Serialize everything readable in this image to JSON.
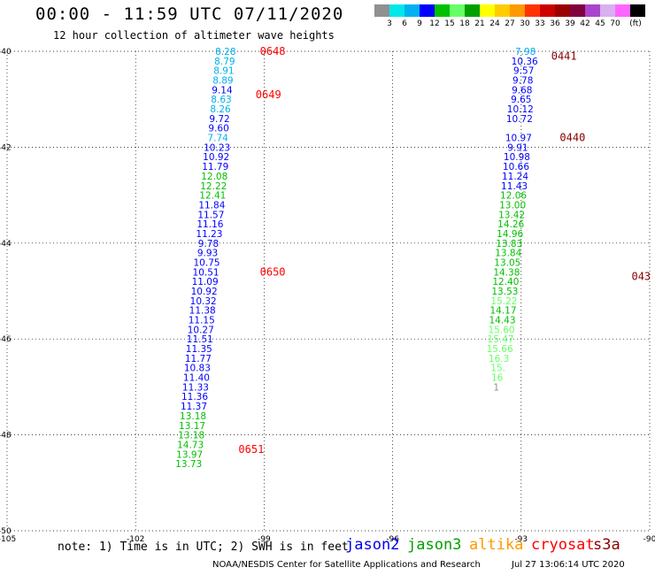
{
  "header": {
    "title": "00:00 - 11:59 UTC 07/11/2020",
    "subtitle": "12 hour collection of altimeter wave heights"
  },
  "colorbar": {
    "colors": [
      "#909090",
      "#00e8e8",
      "#00b0f0",
      "#0000ff",
      "#00c000",
      "#66ff66",
      "#00a000",
      "#ffff00",
      "#ffcc00",
      "#ff9900",
      "#ff3300",
      "#cc0000",
      "#990000",
      "#800040",
      "#aa44cc",
      "#d8b0f0",
      "#ff66ff",
      "#000000"
    ],
    "labels": [
      "3",
      "6",
      "9",
      "12",
      "15",
      "18",
      "21",
      "24",
      "27",
      "30",
      "33",
      "36",
      "39",
      "42",
      "45",
      "70",
      "(ft)"
    ]
  },
  "footer": {
    "note": "note: 1) Time is in UTC; 2) SWH is in feet",
    "credit": "NOAA/NESDIS Center for Satellite Applications and Research",
    "timestamp": "Jul 27 13:06:14 UTC 2020"
  },
  "legend": [
    {
      "name": "jason2",
      "color": "#0000ee"
    },
    {
      "name": "jason3",
      "color": "#00a000"
    },
    {
      "name": "altika",
      "color": "#ff9900"
    },
    {
      "name": "cryosat",
      "color": "#ff0000"
    },
    {
      "name": "s3a",
      "color": "#880000"
    }
  ],
  "chart_data": {
    "type": "scatter",
    "xlim": [
      -105,
      -90
    ],
    "ylim": [
      -50,
      -40
    ],
    "x_ticks": [
      "-105",
      "-102",
      "-99",
      "-96",
      "-93",
      "-90"
    ],
    "y_ticks": [
      "-40",
      "-42",
      "-44",
      "-46",
      "-48",
      "-50"
    ],
    "grid": true,
    "tracks": [
      {
        "satellite": "cryosat",
        "points": [
          {
            "lat": -40.0,
            "lon": -99.9,
            "v": "8.28"
          },
          {
            "lat": -40.2,
            "lon": -99.92,
            "v": "8.79"
          },
          {
            "lat": -40.4,
            "lon": -99.94,
            "v": "8.91"
          },
          {
            "lat": -40.6,
            "lon": -99.96,
            "v": "8.89"
          },
          {
            "lat": -40.8,
            "lon": -99.98,
            "v": "9.14"
          },
          {
            "lat": -41.0,
            "lon": -100.0,
            "v": "8.63"
          },
          {
            "lat": -41.2,
            "lon": -100.02,
            "v": "8.26"
          },
          {
            "lat": -41.4,
            "lon": -100.04,
            "v": "9.72"
          },
          {
            "lat": -41.6,
            "lon": -100.06,
            "v": "9.60"
          },
          {
            "lat": -41.8,
            "lon": -100.08,
            "v": "7.74"
          },
          {
            "lat": -42.0,
            "lon": -100.1,
            "v": "10.23"
          },
          {
            "lat": -42.2,
            "lon": -100.12,
            "v": "10.92"
          },
          {
            "lat": -42.4,
            "lon": -100.14,
            "v": "11.79"
          },
          {
            "lat": -42.6,
            "lon": -100.16,
            "v": "12.08"
          },
          {
            "lat": -42.8,
            "lon": -100.18,
            "v": "12.22"
          },
          {
            "lat": -43.0,
            "lon": -100.2,
            "v": "12.41"
          },
          {
            "lat": -43.2,
            "lon": -100.22,
            "v": "11.84"
          },
          {
            "lat": -43.4,
            "lon": -100.24,
            "v": "11.57"
          },
          {
            "lat": -43.6,
            "lon": -100.26,
            "v": "11.16"
          },
          {
            "lat": -43.8,
            "lon": -100.28,
            "v": "11.23"
          },
          {
            "lat": -44.0,
            "lon": -100.3,
            "v": "9.78"
          },
          {
            "lat": -44.2,
            "lon": -100.32,
            "v": "9.93"
          },
          {
            "lat": -44.4,
            "lon": -100.34,
            "v": "10.75"
          },
          {
            "lat": -44.6,
            "lon": -100.36,
            "v": "10.51"
          },
          {
            "lat": -44.8,
            "lon": -100.38,
            "v": "11.09"
          },
          {
            "lat": -45.0,
            "lon": -100.4,
            "v": "10.92"
          },
          {
            "lat": -45.2,
            "lon": -100.42,
            "v": "10.32"
          },
          {
            "lat": -45.4,
            "lon": -100.44,
            "v": "11.38"
          },
          {
            "lat": -45.6,
            "lon": -100.46,
            "v": "11.15"
          },
          {
            "lat": -45.8,
            "lon": -100.48,
            "v": "10.27"
          },
          {
            "lat": -46.0,
            "lon": -100.5,
            "v": "11.51"
          },
          {
            "lat": -46.2,
            "lon": -100.52,
            "v": "11.35"
          },
          {
            "lat": -46.4,
            "lon": -100.54,
            "v": "11.77"
          },
          {
            "lat": -46.6,
            "lon": -100.56,
            "v": "10.83"
          },
          {
            "lat": -46.8,
            "lon": -100.58,
            "v": "11.40"
          },
          {
            "lat": -47.0,
            "lon": -100.6,
            "v": "11.33"
          },
          {
            "lat": -47.2,
            "lon": -100.62,
            "v": "11.36"
          },
          {
            "lat": -47.4,
            "lon": -100.64,
            "v": "11.37"
          },
          {
            "lat": -47.6,
            "lon": -100.66,
            "v": "13.18"
          },
          {
            "lat": -47.8,
            "lon": -100.68,
            "v": "13.17"
          },
          {
            "lat": -48.0,
            "lon": -100.7,
            "v": "13.18"
          },
          {
            "lat": -48.2,
            "lon": -100.72,
            "v": "14.73"
          },
          {
            "lat": -48.4,
            "lon": -100.74,
            "v": "13.97"
          },
          {
            "lat": -48.6,
            "lon": -100.76,
            "v": "13.73"
          }
        ],
        "time_labels": [
          {
            "lat": -40.0,
            "lon": -98.8,
            "t": "0648"
          },
          {
            "lat": -40.9,
            "lon": -98.9,
            "t": "0649"
          },
          {
            "lat": -44.6,
            "lon": -98.8,
            "t": "0650"
          },
          {
            "lat": -48.3,
            "lon": -99.3,
            "t": "0651"
          }
        ]
      },
      {
        "satellite": "s3a",
        "points": [
          {
            "lat": -40.0,
            "lon": -92.9,
            "v": "7.98"
          },
          {
            "lat": -40.2,
            "lon": -92.92,
            "v": "10.36"
          },
          {
            "lat": -40.4,
            "lon": -92.94,
            "v": "9.57"
          },
          {
            "lat": -40.6,
            "lon": -92.96,
            "v": "9.78"
          },
          {
            "lat": -40.8,
            "lon": -92.98,
            "v": "9.68"
          },
          {
            "lat": -41.0,
            "lon": -93.0,
            "v": "9.65"
          },
          {
            "lat": -41.2,
            "lon": -93.02,
            "v": "10.12"
          },
          {
            "lat": -41.4,
            "lon": -93.04,
            "v": "10.72"
          },
          {
            "lat": -41.8,
            "lon": -93.06,
            "v": "10.97"
          },
          {
            "lat": -42.0,
            "lon": -93.08,
            "v": "9.91"
          },
          {
            "lat": -42.2,
            "lon": -93.1,
            "v": "10.98"
          },
          {
            "lat": -42.4,
            "lon": -93.12,
            "v": "10.66"
          },
          {
            "lat": -42.6,
            "lon": -93.14,
            "v": "11.24"
          },
          {
            "lat": -42.8,
            "lon": -93.16,
            "v": "11.43"
          },
          {
            "lat": -43.0,
            "lon": -93.18,
            "v": "12.06"
          },
          {
            "lat": -43.2,
            "lon": -93.2,
            "v": "13.00"
          },
          {
            "lat": -43.4,
            "lon": -93.22,
            "v": "13.42"
          },
          {
            "lat": -43.6,
            "lon": -93.24,
            "v": "14.26"
          },
          {
            "lat": -43.8,
            "lon": -93.26,
            "v": "14.96"
          },
          {
            "lat": -44.0,
            "lon": -93.28,
            "v": "13.83"
          },
          {
            "lat": -44.2,
            "lon": -93.3,
            "v": "13.84"
          },
          {
            "lat": -44.4,
            "lon": -93.32,
            "v": "13.05"
          },
          {
            "lat": -44.6,
            "lon": -93.34,
            "v": "14.38"
          },
          {
            "lat": -44.8,
            "lon": -93.36,
            "v": "12.40"
          },
          {
            "lat": -45.0,
            "lon": -93.38,
            "v": "13.53"
          },
          {
            "lat": -45.2,
            "lon": -93.4,
            "v": "15.22"
          },
          {
            "lat": -45.4,
            "lon": -93.42,
            "v": "14.17"
          },
          {
            "lat": -45.6,
            "lon": -93.44,
            "v": "14.43"
          },
          {
            "lat": -45.8,
            "lon": -93.46,
            "v": "15.60"
          },
          {
            "lat": -46.0,
            "lon": -93.48,
            "v": "15.47"
          },
          {
            "lat": -46.2,
            "lon": -93.5,
            "v": "15.66"
          },
          {
            "lat": -46.4,
            "lon": -93.52,
            "v": "16.3"
          },
          {
            "lat": -46.6,
            "lon": -93.54,
            "v": "15."
          },
          {
            "lat": -46.8,
            "lon": -93.56,
            "v": "16"
          },
          {
            "lat": -47.0,
            "lon": -93.58,
            "v": "1"
          }
        ],
        "time_labels": [
          {
            "lat": -40.1,
            "lon": -92.0,
            "t": "0441"
          },
          {
            "lat": -41.8,
            "lon": -91.8,
            "t": "0440"
          },
          {
            "lat": -44.7,
            "lon": -90.2,
            "t": "043"
          }
        ]
      }
    ]
  }
}
